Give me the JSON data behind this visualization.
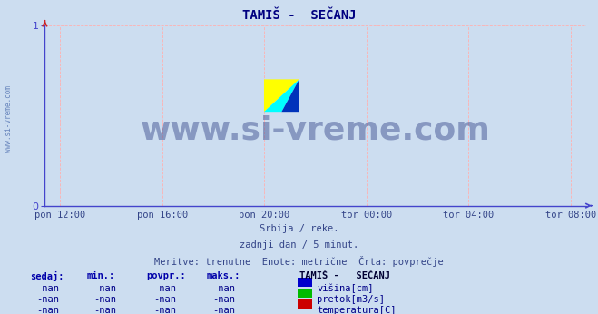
{
  "title": "TAMIŠ -  SEČANJ",
  "background_color": "#ccddf0",
  "plot_bg_color": "#ccddf0",
  "grid_color": "#ffb0b0",
  "axis_color": "#4444cc",
  "left_spine_color": "#4444cc",
  "bottom_spine_color": "#4444cc",
  "title_color": "#000080",
  "title_fontsize": 10,
  "watermark_text": "www.si-vreme.com",
  "watermark_color": "#334488",
  "watermark_alpha": 0.45,
  "watermark_fontsize": 26,
  "sidebar_text": "www.si-vreme.com",
  "sidebar_color": "#4466aa",
  "ylim": [
    0,
    1
  ],
  "yticks": [
    0,
    1
  ],
  "xtick_labels": [
    "pon 12:00",
    "pon 16:00",
    "pon 20:00",
    "tor 00:00",
    "tor 04:00",
    "tor 08:00"
  ],
  "xtick_positions": [
    0,
    1,
    2,
    3,
    4,
    5
  ],
  "xlabel_color": "#334488",
  "xlabel_fontsize": 7.5,
  "ylabel_fontsize": 8,
  "subtitle_lines": [
    "Srbija / reke.",
    "zadnji dan / 5 minut.",
    "Meritve: trenutne  Enote: metrične  Črta: povprečje"
  ],
  "subtitle_color": "#334488",
  "subtitle_fontsize": 7.5,
  "legend_title": "TAMIŠ -   SEČANJ",
  "legend_items": [
    {
      "label": "višina[cm]",
      "color": "#0000cc"
    },
    {
      "label": "pretok[m3/s]",
      "color": "#00bb00"
    },
    {
      "label": "temperatura[C]",
      "color": "#cc0000"
    }
  ],
  "table_headers": [
    "sedaj:",
    "min.:",
    "povpr.:",
    "maks.:"
  ],
  "table_values": [
    "-nan",
    "-nan",
    "-nan",
    "-nan"
  ],
  "table_header_color": "#0000aa",
  "table_val_color": "#000088",
  "table_fontsize": 7.5
}
